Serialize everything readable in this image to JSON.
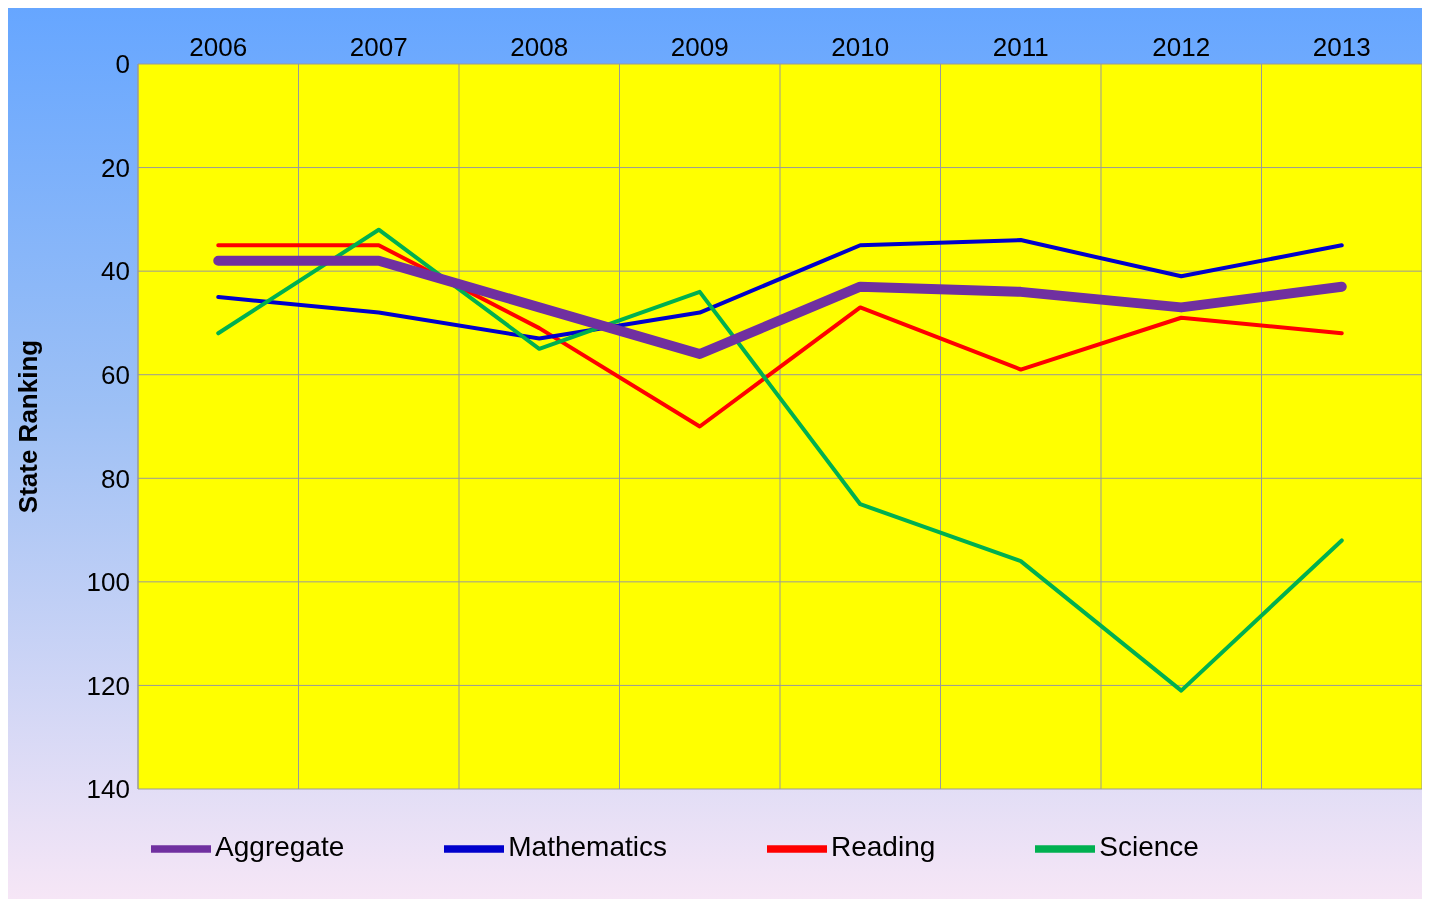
{
  "chart_data": {
    "type": "line",
    "ylabel": "State Ranking",
    "categories": [
      "2006",
      "2007",
      "2008",
      "2009",
      "2010",
      "2011",
      "2012",
      "2013"
    ],
    "series": [
      {
        "name": "Reading",
        "color": "#ff0000",
        "values": [
          35,
          35,
          51,
          70,
          47,
          59,
          49,
          52
        ]
      },
      {
        "name": "Mathematics",
        "color": "#0000cc",
        "values": [
          45,
          48,
          53,
          48,
          35,
          34,
          41,
          35
        ]
      },
      {
        "name": "Science",
        "color": "#00b050",
        "values": [
          52,
          32,
          55,
          44,
          85,
          96,
          121,
          92
        ]
      },
      {
        "name": "Aggregate",
        "color": "#7030a0",
        "values": [
          38,
          38,
          47,
          56,
          43,
          44,
          47,
          43
        ]
      }
    ],
    "ylim": [
      140,
      0
    ],
    "yticks": [
      0,
      20,
      40,
      60,
      80,
      100,
      120,
      140
    ],
    "grid": true,
    "legend": "bottom",
    "marker": "none",
    "line_style": "solid"
  }
}
